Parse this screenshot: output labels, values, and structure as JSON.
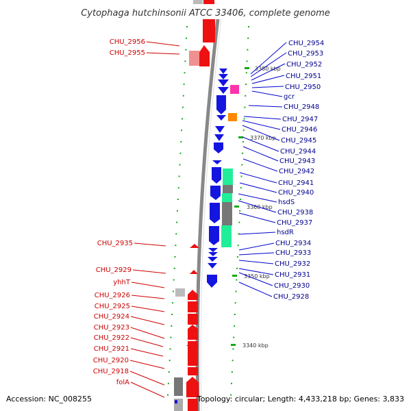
{
  "map": {
    "title": "Cytophaga hutchinsonii ATCC 33406, complete genome",
    "accession_label": "Accession: NC_008255",
    "topology_label": "Topology: circular; Length: 4,433,218 bp; Genes: 3,833",
    "scale_labels": [
      "3380 kbp",
      "3370 kbp",
      "3360 kbp",
      "3350 kbp",
      "3340 kbp"
    ],
    "left_labels": [
      "CHU_2956",
      "CHU_2955",
      "CHU_2935",
      "CHU_2929",
      "yhhT",
      "CHU_2926",
      "CHU_2925",
      "CHU_2924",
      "CHU_2923",
      "CHU_2922",
      "CHU_2921",
      "CHU_2920",
      "CHU_2918",
      "folA"
    ],
    "right_labels": [
      "CHU_2954",
      "CHU_2953",
      "CHU_2952",
      "CHU_2951",
      "CHU_2950",
      "gcr",
      "CHU_2948",
      "CHU_2947",
      "CHU_2946",
      "CHU_2945",
      "CHU_2944",
      "CHU_2943",
      "CHU_2942",
      "CHU_2941",
      "CHU_2940",
      "hsdS",
      "CHU_2938",
      "CHU_2937",
      "hsdR",
      "CHU_2934",
      "CHU_2933",
      "CHU_2932",
      "CHU_2931",
      "CHU_2930",
      "CHU_2928"
    ]
  },
  "colors": {
    "forward_strand": "#ee1111",
    "reverse_strand": "#1515e0",
    "backbone": "#888888",
    "pseudo_gene": "#777777",
    "rna_gene": "#22ee99",
    "misc_gene": "#ff33aa",
    "other_gene": "#ff8800",
    "tick": "#11aa11"
  }
}
